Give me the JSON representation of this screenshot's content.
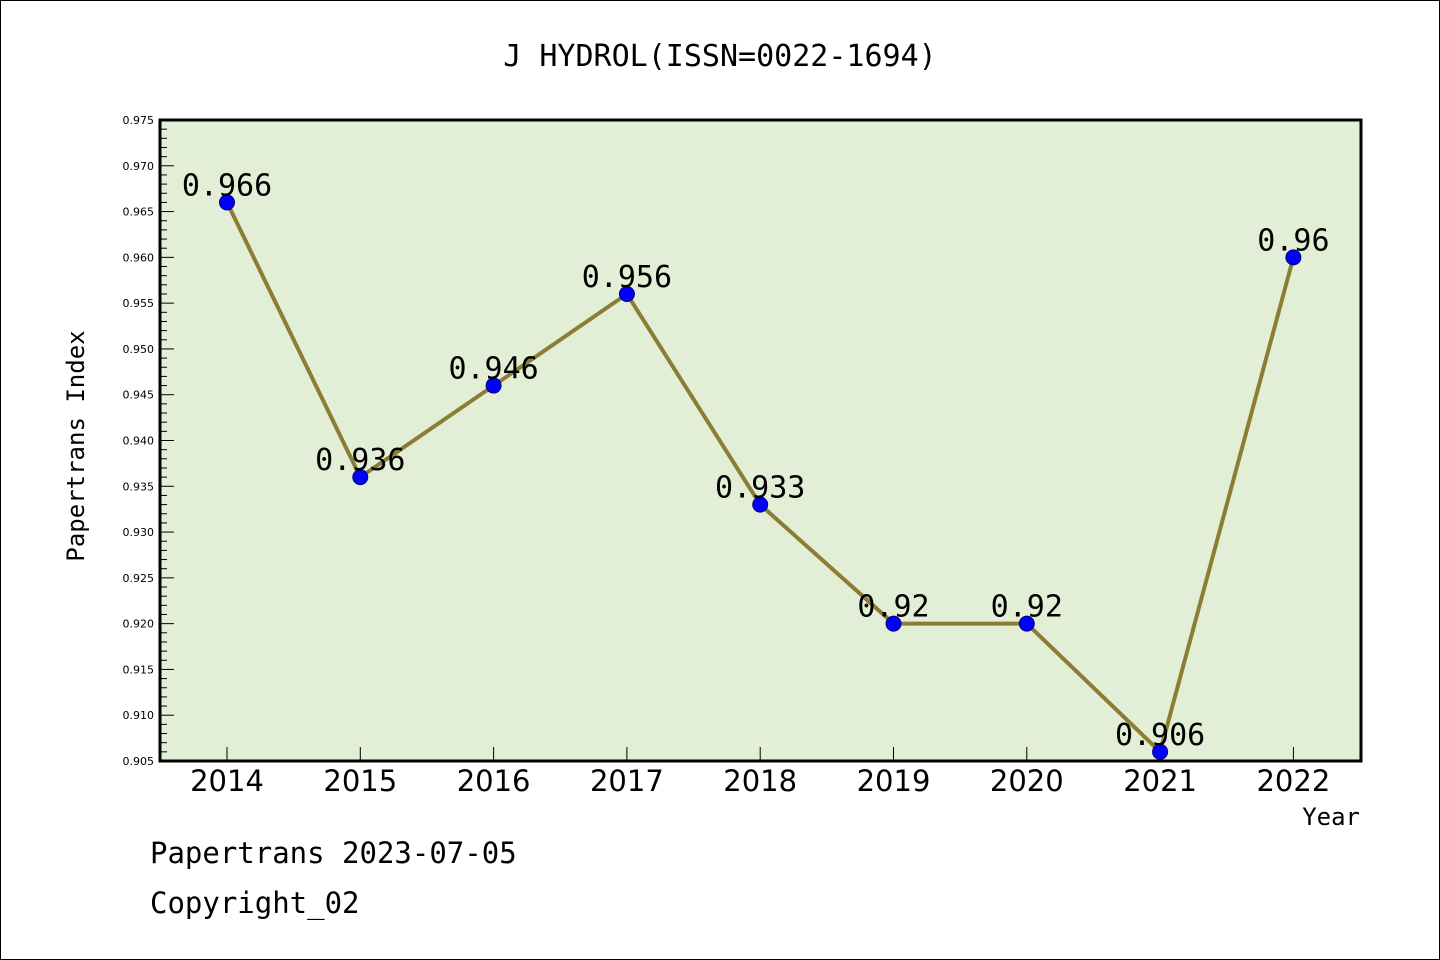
{
  "chart_data": {
    "type": "line",
    "title": "J HYDROL(ISSN=0022-1694)",
    "xlabel": "Year",
    "ylabel": "Papertrans Index",
    "categories": [
      "2014",
      "2015",
      "2016",
      "2017",
      "2018",
      "2019",
      "2020",
      "2021",
      "2022"
    ],
    "series": [
      {
        "values": [
          0.966,
          0.936,
          0.946,
          0.956,
          0.933,
          0.92,
          0.92,
          0.906,
          0.96
        ],
        "data_labels": [
          "0.966",
          "0.936",
          "0.946",
          "0.956",
          "0.933",
          "0.92",
          "0.92",
          "0.906",
          "0.96"
        ]
      }
    ],
    "ylim": [
      0.905,
      0.975
    ],
    "yticks": [
      "0.905",
      "0.910",
      "0.915",
      "0.920",
      "0.925",
      "0.930",
      "0.935",
      "0.940",
      "0.945",
      "0.950",
      "0.955",
      "0.960",
      "0.965",
      "0.970",
      "0.975"
    ],
    "grid": false,
    "legend": "none",
    "colors": {
      "plot_background": "#e2efd6",
      "line": "#8c7d35",
      "marker": "#0000ff"
    }
  },
  "footer": {
    "line1": "Papertrans 2023-07-05",
    "line2": "Copyright_02"
  }
}
